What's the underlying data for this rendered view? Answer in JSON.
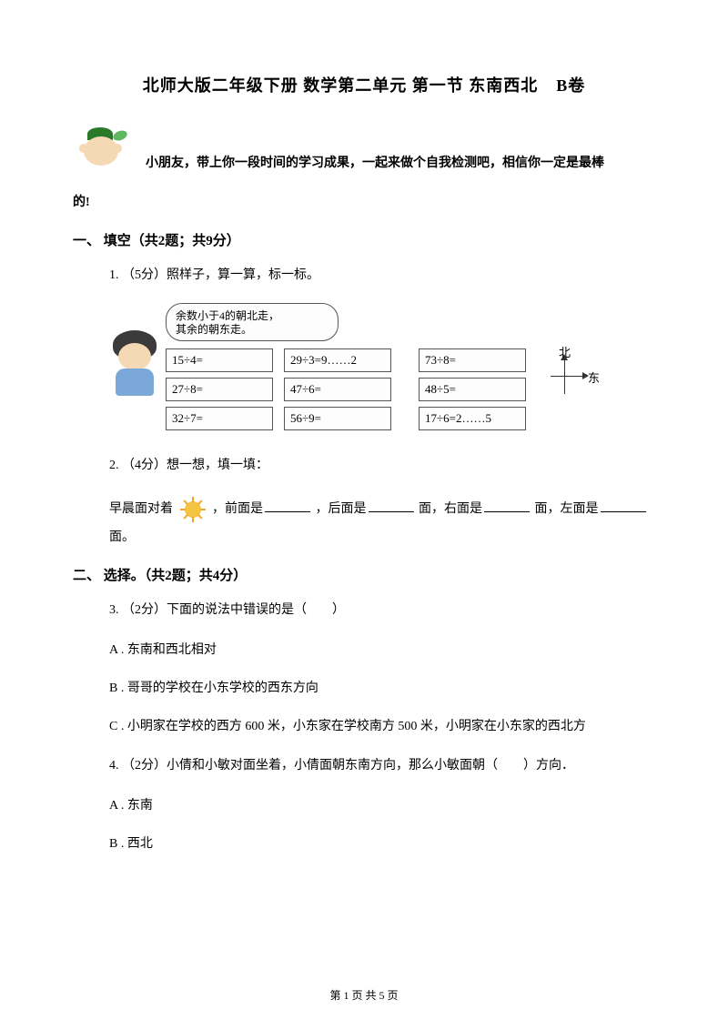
{
  "title_a": "北师大版二年级下册 数学第二单元 第一节 东南西北",
  "title_b": "B卷",
  "intro_line1": "小朋友，带上你一段时间的学习成果，一起来做个自我检测吧，相信你一定是最棒",
  "intro_line2": "的!",
  "section1": "一、 填空（共2题；共9分）",
  "q1": "1.  （5分）照样子，算一算，标一标。",
  "speech_l1": "余数小于4的朝北走，",
  "speech_l2": "其余的朝东走。",
  "grid": {
    "col1": [
      "15÷4=",
      "27÷8=",
      "32÷7="
    ],
    "col2": [
      "29÷3=9……2",
      "47÷6=",
      "56÷9="
    ],
    "col3": [
      "73÷8=",
      "48÷5=",
      "17÷6=2……5"
    ]
  },
  "compass_n": "北",
  "compass_e": "东",
  "q2": "2.  （4分）想一想，填一填：",
  "q2_text_a": "早晨面对着",
  "q2_text_b": "，前面是",
  "q2_text_c": "，后面是",
  "q2_text_d": "面，右面是",
  "q2_text_e": "面，左面是",
  "q2_text_f": "面。",
  "section2": "二、 选择。（共2题；共4分）",
  "q3": "3.  （2分）下面的说法中错误的是（　　）",
  "q3a": "A . 东南和西北相对",
  "q3b": "B . 哥哥的学校在小东学校的西东方向",
  "q3c": "C . 小明家在学校的西方 600 米，小东家在学校南方 500 米，小明家在小东家的西北方",
  "q4": "4.  （2分）小倩和小敏对面坐着，小倩面朝东南方向，那么小敏面朝（　　）方向．",
  "q4a": "A . 东南",
  "q4b": "B . 西北",
  "footer": "第 1 页 共 5 页"
}
